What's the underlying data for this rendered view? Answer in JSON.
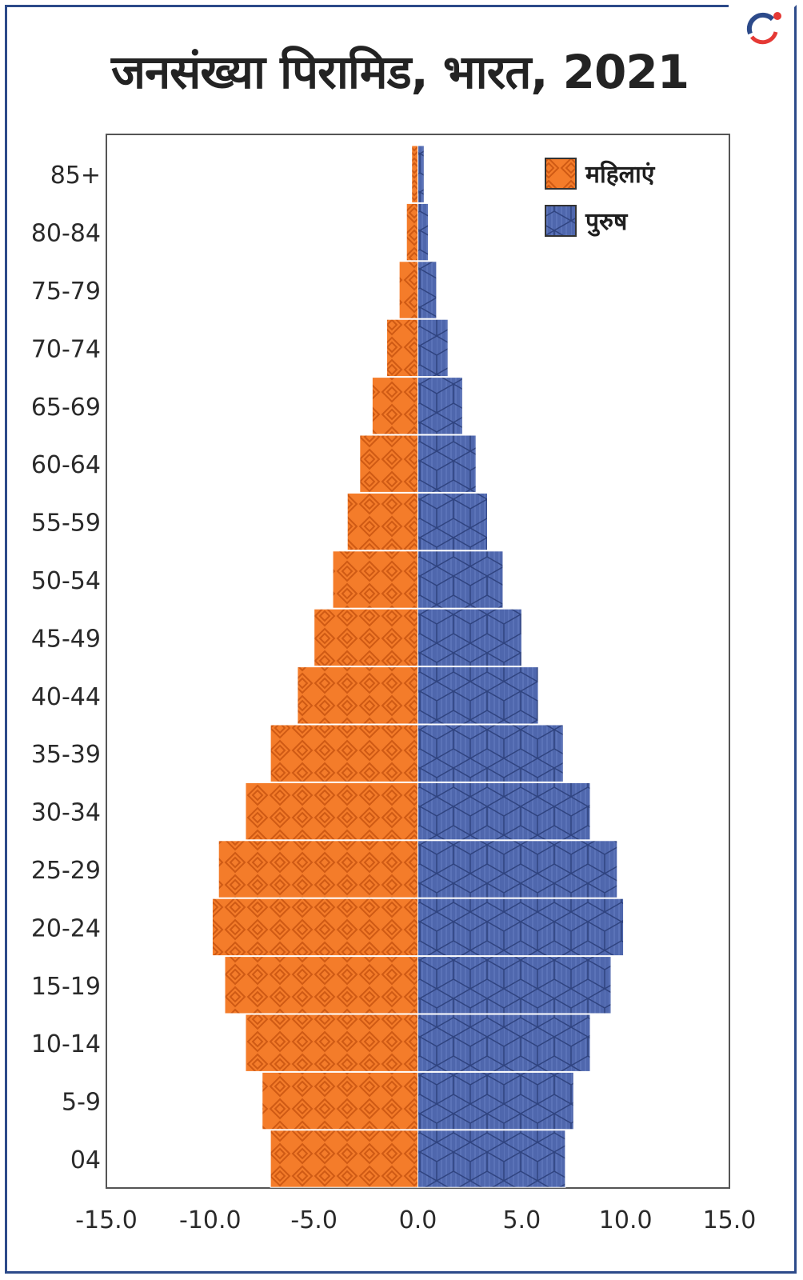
{
  "title": "जनसंख्या पिरामिड, भारत, 2021",
  "colors": {
    "female": "#f47c2a",
    "female_pattern": "#d8621a",
    "male": "#4f67ad",
    "male_pattern": "#3a4f92",
    "border": "#2c4a8a"
  },
  "chart_data": {
    "type": "bar",
    "orientation": "horizontal",
    "title": "जनसंख्या पिरामिड, भारत, 2021",
    "categories": [
      "04",
      "5-9",
      "10-14",
      "15-19",
      "20-24",
      "25-29",
      "30-34",
      "35-39",
      "40-44",
      "45-49",
      "50-54",
      "55-59",
      "60-64",
      "65-69",
      "70-74",
      "75-79",
      "80-84",
      "85+"
    ],
    "series": [
      {
        "name": "महिलाएं",
        "values": [
          -7.1,
          -7.5,
          -8.3,
          -9.3,
          -9.9,
          -9.6,
          -8.3,
          -7.1,
          -5.8,
          -5.0,
          -4.1,
          -3.4,
          -2.8,
          -2.2,
          -1.5,
          -0.9,
          -0.55,
          -0.3
        ]
      },
      {
        "name": "पुरुष",
        "values": [
          7.1,
          7.5,
          8.3,
          9.3,
          9.9,
          9.6,
          8.3,
          7.0,
          5.8,
          5.0,
          4.1,
          3.35,
          2.8,
          2.15,
          1.45,
          0.9,
          0.5,
          0.3
        ]
      }
    ],
    "xlim": [
      -15,
      15
    ],
    "xticks": [
      "-15.0",
      "-10.0",
      "-5.0",
      "0.0",
      "5.0",
      "10.0",
      "15.0"
    ],
    "xtick_values": [
      -15,
      -10,
      -5,
      0,
      5,
      10,
      15
    ],
    "legend": {
      "position": "top-right",
      "entries": [
        "महिलाएं",
        "पुरुष"
      ]
    },
    "grid": false
  }
}
